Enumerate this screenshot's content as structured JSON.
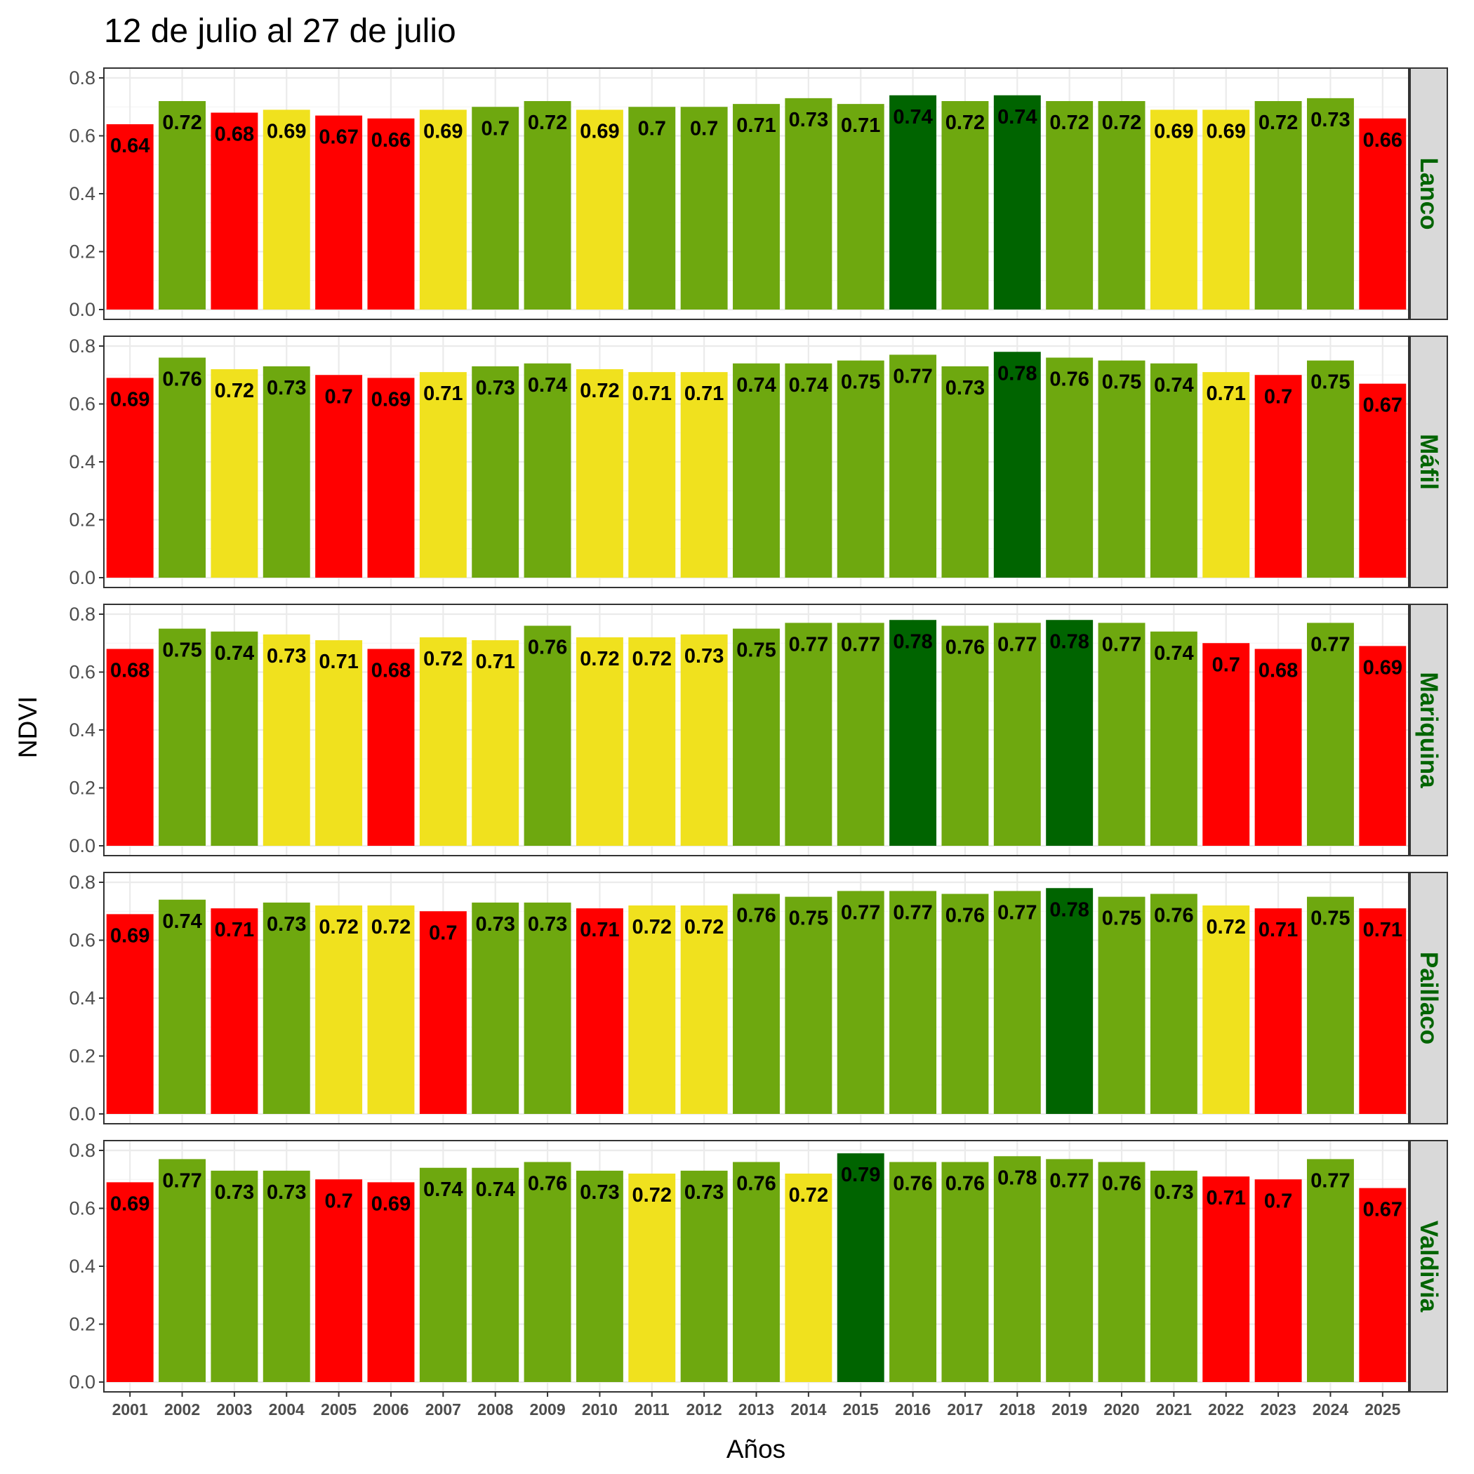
{
  "chart_data": {
    "type": "bar",
    "title": "12 de julio al 27 de julio",
    "xlabel": "Años",
    "ylabel": "NDVI",
    "ylim": [
      0,
      0.8
    ],
    "yticks": [
      "0.0",
      "0.2",
      "0.4",
      "0.6",
      "0.8"
    ],
    "grid": true,
    "categories": [
      "2001",
      "2002",
      "2003",
      "2004",
      "2005",
      "2006",
      "2007",
      "2008",
      "2009",
      "2010",
      "2011",
      "2012",
      "2013",
      "2014",
      "2015",
      "2016",
      "2017",
      "2018",
      "2019",
      "2020",
      "2021",
      "2022",
      "2023",
      "2024",
      "2025"
    ],
    "colors": {
      "red": "#ff0000",
      "yellow": "#f0e11e",
      "green": "#6ea80f",
      "dark_green": "#006400",
      "strip_text": "#006400"
    },
    "panels": [
      {
        "name": "Lanco",
        "values": [
          0.64,
          0.72,
          0.68,
          0.69,
          0.67,
          0.66,
          0.69,
          0.7,
          0.72,
          0.69,
          0.7,
          0.7,
          0.71,
          0.73,
          0.71,
          0.74,
          0.72,
          0.74,
          0.72,
          0.72,
          0.69,
          0.69,
          0.72,
          0.73,
          0.66
        ],
        "labels": [
          "0.64",
          "0.72",
          "0.68",
          "0.69",
          "0.67",
          "0.66",
          "0.69",
          "0.7",
          "0.72",
          "0.69",
          "0.7",
          "0.7",
          "0.71",
          "0.73",
          "0.71",
          "0.74",
          "0.72",
          "0.74",
          "0.72",
          "0.72",
          "0.69",
          "0.69",
          "0.72",
          "0.73",
          "0.66"
        ],
        "bar_colors": [
          "red",
          "green",
          "red",
          "yellow",
          "red",
          "red",
          "yellow",
          "green",
          "green",
          "yellow",
          "green",
          "green",
          "green",
          "green",
          "green",
          "dark_green",
          "green",
          "dark_green",
          "green",
          "green",
          "yellow",
          "yellow",
          "green",
          "green",
          "red"
        ]
      },
      {
        "name": "Máfil",
        "values": [
          0.69,
          0.76,
          0.72,
          0.73,
          0.7,
          0.69,
          0.71,
          0.73,
          0.74,
          0.72,
          0.71,
          0.71,
          0.74,
          0.74,
          0.75,
          0.77,
          0.73,
          0.78,
          0.76,
          0.75,
          0.74,
          0.71,
          0.7,
          0.75,
          0.67
        ],
        "labels": [
          "0.69",
          "0.76",
          "0.72",
          "0.73",
          "0.7",
          "0.69",
          "0.71",
          "0.73",
          "0.74",
          "0.72",
          "0.71",
          "0.71",
          "0.74",
          "0.74",
          "0.75",
          "0.77",
          "0.73",
          "0.78",
          "0.76",
          "0.75",
          "0.74",
          "0.71",
          "0.7",
          "0.75",
          "0.67"
        ],
        "bar_colors": [
          "red",
          "green",
          "yellow",
          "green",
          "red",
          "red",
          "yellow",
          "green",
          "green",
          "yellow",
          "yellow",
          "yellow",
          "green",
          "green",
          "green",
          "green",
          "green",
          "dark_green",
          "green",
          "green",
          "green",
          "yellow",
          "red",
          "green",
          "red"
        ]
      },
      {
        "name": "Mariquina",
        "values": [
          0.68,
          0.75,
          0.74,
          0.73,
          0.71,
          0.68,
          0.72,
          0.71,
          0.76,
          0.72,
          0.72,
          0.73,
          0.75,
          0.77,
          0.77,
          0.78,
          0.76,
          0.77,
          0.78,
          0.77,
          0.74,
          0.7,
          0.68,
          0.77,
          0.69
        ],
        "labels": [
          "0.68",
          "0.75",
          "0.74",
          "0.73",
          "0.71",
          "0.68",
          "0.72",
          "0.71",
          "0.76",
          "0.72",
          "0.72",
          "0.73",
          "0.75",
          "0.77",
          "0.77",
          "0.78",
          "0.76",
          "0.77",
          "0.78",
          "0.77",
          "0.74",
          "0.7",
          "0.68",
          "0.77",
          "0.69"
        ],
        "bar_colors": [
          "red",
          "green",
          "green",
          "yellow",
          "yellow",
          "red",
          "yellow",
          "yellow",
          "green",
          "yellow",
          "yellow",
          "yellow",
          "green",
          "green",
          "green",
          "dark_green",
          "green",
          "green",
          "dark_green",
          "green",
          "green",
          "red",
          "red",
          "green",
          "red"
        ]
      },
      {
        "name": "Paillaco",
        "values": [
          0.69,
          0.74,
          0.71,
          0.73,
          0.72,
          0.72,
          0.7,
          0.73,
          0.73,
          0.71,
          0.72,
          0.72,
          0.76,
          0.75,
          0.77,
          0.77,
          0.76,
          0.77,
          0.78,
          0.75,
          0.76,
          0.72,
          0.71,
          0.75,
          0.71
        ],
        "labels": [
          "0.69",
          "0.74",
          "0.71",
          "0.73",
          "0.72",
          "0.72",
          "0.7",
          "0.73",
          "0.73",
          "0.71",
          "0.72",
          "0.72",
          "0.76",
          "0.75",
          "0.77",
          "0.77",
          "0.76",
          "0.77",
          "0.78",
          "0.75",
          "0.76",
          "0.72",
          "0.71",
          "0.75",
          "0.71"
        ],
        "bar_colors": [
          "red",
          "green",
          "red",
          "green",
          "yellow",
          "yellow",
          "red",
          "green",
          "green",
          "red",
          "yellow",
          "yellow",
          "green",
          "green",
          "green",
          "green",
          "green",
          "green",
          "dark_green",
          "green",
          "green",
          "yellow",
          "red",
          "green",
          "red"
        ]
      },
      {
        "name": "Valdivia",
        "values": [
          0.69,
          0.77,
          0.73,
          0.73,
          0.7,
          0.69,
          0.74,
          0.74,
          0.76,
          0.73,
          0.72,
          0.73,
          0.76,
          0.72,
          0.79,
          0.76,
          0.76,
          0.78,
          0.77,
          0.76,
          0.73,
          0.71,
          0.7,
          0.77,
          0.67
        ],
        "labels": [
          "0.69",
          "0.77",
          "0.73",
          "0.73",
          "0.7",
          "0.69",
          "0.74",
          "0.74",
          "0.76",
          "0.73",
          "0.72",
          "0.73",
          "0.76",
          "0.72",
          "0.79",
          "0.76",
          "0.76",
          "0.78",
          "0.77",
          "0.76",
          "0.73",
          "0.71",
          "0.7",
          "0.77",
          "0.67"
        ],
        "bar_colors": [
          "red",
          "green",
          "green",
          "green",
          "red",
          "red",
          "green",
          "green",
          "green",
          "green",
          "yellow",
          "green",
          "green",
          "yellow",
          "dark_green",
          "green",
          "green",
          "green",
          "green",
          "green",
          "green",
          "red",
          "red",
          "green",
          "red"
        ]
      }
    ]
  }
}
